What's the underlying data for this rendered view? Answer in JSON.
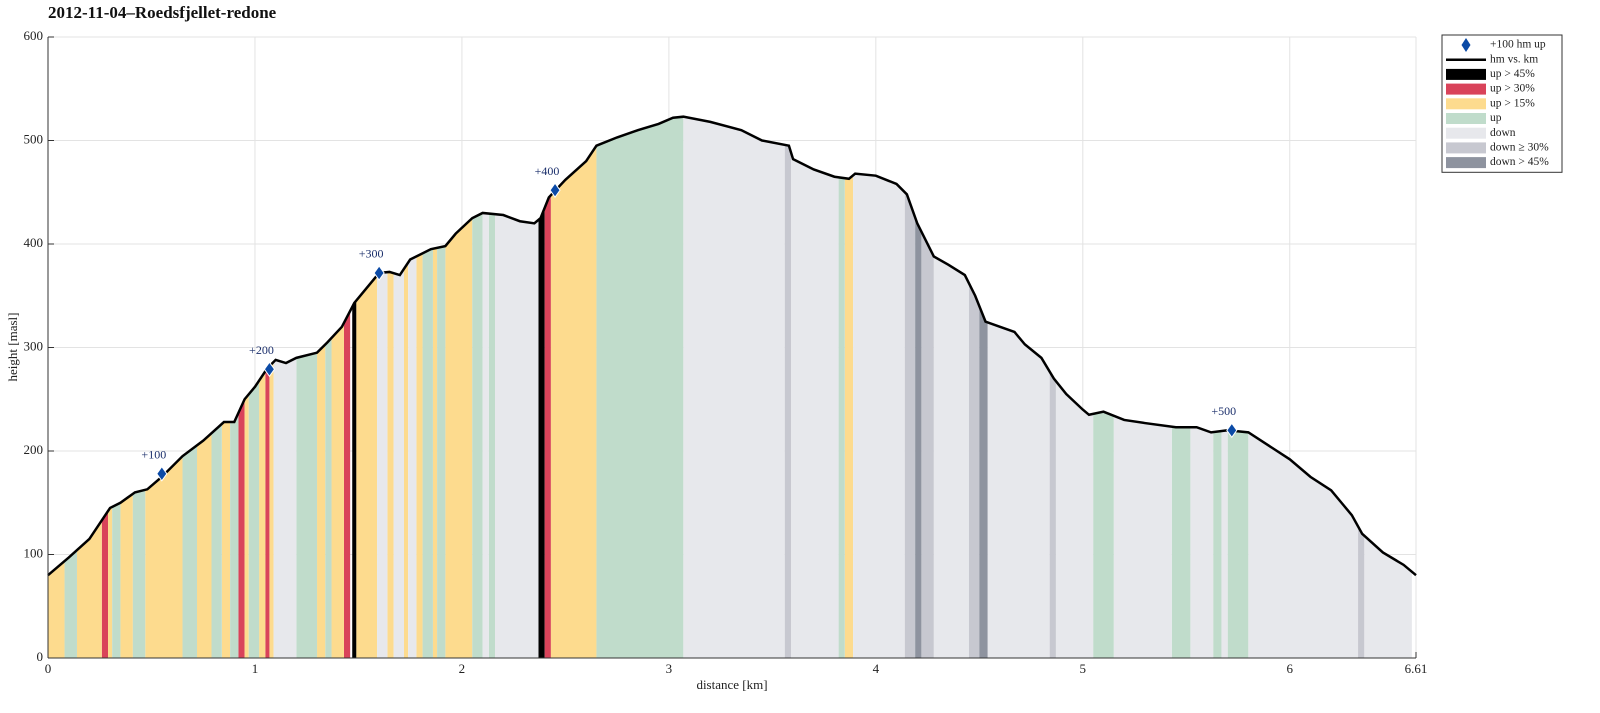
{
  "chart_data": {
    "type": "area",
    "title": "2012-11-04–Roedsfjellet-redone",
    "xlabel": "distance [km]",
    "ylabel": "height [masl]",
    "xlim": [
      0,
      6.61
    ],
    "xticks": [
      0,
      1,
      2,
      3,
      4,
      5,
      6,
      6.61
    ],
    "ylim": [
      0,
      600
    ],
    "yticks": [
      0,
      100,
      200,
      300,
      400,
      500,
      600
    ],
    "grid": true,
    "legend": "outside-right",
    "series": [
      {
        "name": "hm vs. km",
        "color": "#000000",
        "x": [
          0,
          0.1,
          0.2,
          0.25,
          0.3,
          0.35,
          0.42,
          0.48,
          0.55,
          0.65,
          0.75,
          0.85,
          0.9,
          0.95,
          1.0,
          1.06,
          1.1,
          1.15,
          1.2,
          1.3,
          1.35,
          1.42,
          1.48,
          1.55,
          1.6,
          1.65,
          1.7,
          1.75,
          1.85,
          1.92,
          1.97,
          2.05,
          2.1,
          2.2,
          2.28,
          2.35,
          2.38,
          2.42,
          2.5,
          2.6,
          2.65,
          2.75,
          2.85,
          2.95,
          3.02,
          3.07,
          3.2,
          3.35,
          3.45,
          3.58,
          3.6,
          3.7,
          3.8,
          3.87,
          3.9,
          4.0,
          4.1,
          4.15,
          4.2,
          4.28,
          4.35,
          4.43,
          4.48,
          4.53,
          4.6,
          4.67,
          4.72,
          4.8,
          4.86,
          4.92,
          5.0,
          5.03,
          5.1,
          5.2,
          5.3,
          5.45,
          5.55,
          5.62,
          5.7,
          5.8,
          5.9,
          6.0,
          6.1,
          6.2,
          6.25,
          6.3,
          6.35,
          6.45,
          6.55,
          6.61
        ],
        "values": [
          80,
          97,
          115,
          130,
          145,
          150,
          160,
          163,
          175,
          195,
          210,
          228,
          228,
          250,
          262,
          280,
          288,
          285,
          290,
          295,
          305,
          320,
          343,
          360,
          372,
          373,
          370,
          385,
          395,
          398,
          410,
          425,
          430,
          428,
          422,
          420,
          425,
          445,
          462,
          480,
          495,
          503,
          510,
          516,
          522,
          523,
          518,
          510,
          500,
          495,
          482,
          472,
          465,
          463,
          468,
          466,
          458,
          448,
          420,
          388,
          380,
          370,
          350,
          325,
          320,
          315,
          303,
          290,
          270,
          255,
          240,
          235,
          238,
          230,
          227,
          223,
          223,
          218,
          220,
          218,
          205,
          192,
          175,
          162,
          150,
          138,
          120,
          102,
          90,
          80
        ]
      }
    ],
    "markers": {
      "name": "+100 hm up",
      "color": "#0b4aa6",
      "x": [
        0.55,
        1.07,
        1.6,
        2.45,
        5.72
      ],
      "values": [
        178,
        279,
        372,
        452,
        220
      ],
      "labels": [
        "+100",
        "+200",
        "+300",
        "+400",
        "+500"
      ]
    },
    "bands": [
      {
        "name": "up > 45%",
        "color": "#000000",
        "ranges": [
          [
            1.47,
            1.49
          ],
          [
            2.37,
            2.4
          ]
        ]
      },
      {
        "name": "up > 30%",
        "color": "#d9435a",
        "ranges": [
          [
            0.26,
            0.29
          ],
          [
            0.92,
            0.95
          ],
          [
            1.05,
            1.07
          ],
          [
            1.43,
            1.46
          ],
          [
            2.4,
            2.43
          ]
        ]
      },
      {
        "name": "up > 15%",
        "color": "#fddb8e",
        "ranges": [
          [
            0,
            0.08
          ],
          [
            0.14,
            0.26
          ],
          [
            0.29,
            0.31
          ],
          [
            0.35,
            0.41
          ],
          [
            0.47,
            0.65
          ],
          [
            0.72,
            0.79
          ],
          [
            0.84,
            0.88
          ],
          [
            0.95,
            0.97
          ],
          [
            1.02,
            1.05
          ],
          [
            1.07,
            1.09
          ],
          [
            1.3,
            1.34
          ],
          [
            1.37,
            1.43
          ],
          [
            1.49,
            1.59
          ],
          [
            1.64,
            1.67
          ],
          [
            1.72,
            1.74
          ],
          [
            1.78,
            1.81
          ],
          [
            1.86,
            1.88
          ],
          [
            1.92,
            2.05
          ],
          [
            2.43,
            2.65
          ],
          [
            3.85,
            3.89
          ]
        ]
      },
      {
        "name": "up",
        "color": "#c0dccb",
        "ranges": [
          [
            0.08,
            0.14
          ],
          [
            0.31,
            0.35
          ],
          [
            0.41,
            0.47
          ],
          [
            0.65,
            0.72
          ],
          [
            0.79,
            0.84
          ],
          [
            0.88,
            0.92
          ],
          [
            0.97,
            1.02
          ],
          [
            1.2,
            1.3
          ],
          [
            1.34,
            1.37
          ],
          [
            1.81,
            1.86
          ],
          [
            1.88,
            1.92
          ],
          [
            2.05,
            2.1
          ],
          [
            2.13,
            2.16
          ],
          [
            2.65,
            3.07
          ],
          [
            3.82,
            3.85
          ],
          [
            5.05,
            5.15
          ],
          [
            5.43,
            5.52
          ],
          [
            5.63,
            5.67
          ],
          [
            5.7,
            5.8
          ]
        ]
      },
      {
        "name": "down",
        "color": "#e7e8ec",
        "ranges": [
          [
            1.09,
            1.2
          ],
          [
            1.59,
            1.64
          ],
          [
            1.67,
            1.72
          ],
          [
            1.74,
            1.78
          ],
          [
            2.1,
            2.13
          ],
          [
            2.16,
            2.37
          ],
          [
            3.07,
            3.56
          ],
          [
            3.59,
            3.82
          ],
          [
            3.89,
            4.14
          ],
          [
            4.28,
            4.45
          ],
          [
            4.54,
            4.84
          ],
          [
            4.87,
            5.05
          ],
          [
            5.15,
            5.43
          ],
          [
            5.52,
            5.63
          ],
          [
            5.67,
            5.7
          ],
          [
            5.8,
            6.33
          ],
          [
            6.36,
            6.59
          ]
        ]
      },
      {
        "name": "down ≥ 30%",
        "color": "#c7c8d0",
        "ranges": [
          [
            3.56,
            3.59
          ],
          [
            4.14,
            4.19
          ],
          [
            4.22,
            4.28
          ],
          [
            4.45,
            4.5
          ],
          [
            4.84,
            4.87
          ],
          [
            6.33,
            6.36
          ]
        ]
      },
      {
        "name": "down > 45%",
        "color": "#8e939f",
        "ranges": [
          [
            4.19,
            4.22
          ],
          [
            4.5,
            4.54
          ]
        ]
      }
    ]
  }
}
